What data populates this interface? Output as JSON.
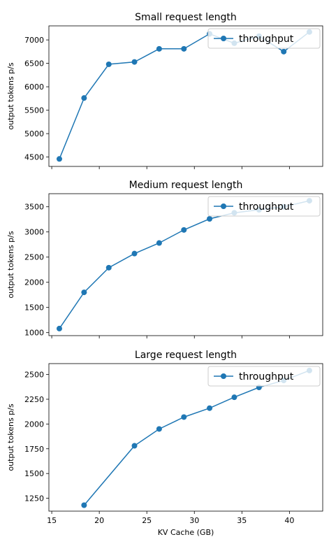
{
  "chart_data": [
    {
      "type": "line",
      "title": "Small request length",
      "xlabel": "",
      "ylabel": "output tokens p/s",
      "xlim": [
        14.7,
        43.5
      ],
      "ylim": [
        4300,
        7300
      ],
      "x_ticks": [
        15,
        20,
        25,
        30,
        35,
        40
      ],
      "y_ticks": [
        4500,
        5000,
        5500,
        6000,
        6500,
        7000
      ],
      "show_x_tick_labels": false,
      "legend": "upper right",
      "color": "#1f77b4",
      "series": [
        {
          "name": "throughput",
          "x": [
            15.8,
            18.4,
            21.0,
            23.7,
            26.3,
            28.9,
            31.6,
            34.2,
            36.8,
            39.4,
            42.1
          ],
          "y": [
            4460,
            5760,
            6480,
            6530,
            6810,
            6810,
            7130,
            6930,
            7080,
            6750,
            7170
          ]
        }
      ]
    },
    {
      "type": "line",
      "title": "Medium request length",
      "xlabel": "",
      "ylabel": "output tokens p/s",
      "xlim": [
        14.7,
        43.5
      ],
      "ylim": [
        940,
        3760
      ],
      "x_ticks": [
        15,
        20,
        25,
        30,
        35,
        40
      ],
      "y_ticks": [
        1000,
        1500,
        2000,
        2500,
        3000,
        3500
      ],
      "show_x_tick_labels": false,
      "legend": "upper right",
      "color": "#1f77b4",
      "series": [
        {
          "name": "throughput",
          "x": [
            15.8,
            18.4,
            21.0,
            23.7,
            26.3,
            28.9,
            31.6,
            34.2,
            36.8,
            39.4,
            42.1
          ],
          "y": [
            1080,
            1800,
            2290,
            2570,
            2780,
            3040,
            3260,
            3380,
            3440,
            3500,
            3620
          ]
        }
      ]
    },
    {
      "type": "line",
      "title": "Large request length",
      "xlabel": "KV Cache (GB)",
      "ylabel": "output tokens p/s",
      "xlim": [
        14.7,
        43.5
      ],
      "ylim": [
        1120,
        2610
      ],
      "x_ticks": [
        15,
        20,
        25,
        30,
        35,
        40
      ],
      "y_ticks": [
        1250,
        1500,
        1750,
        2000,
        2250,
        2500
      ],
      "show_x_tick_labels": true,
      "legend": "upper right",
      "color": "#1f77b4",
      "series": [
        {
          "name": "throughput",
          "x": [
            18.4,
            23.7,
            26.3,
            28.9,
            31.6,
            34.2,
            36.8,
            39.4,
            42.1
          ],
          "y": [
            1180,
            1780,
            1950,
            2070,
            2160,
            2270,
            2370,
            2440,
            2540
          ]
        }
      ]
    }
  ]
}
